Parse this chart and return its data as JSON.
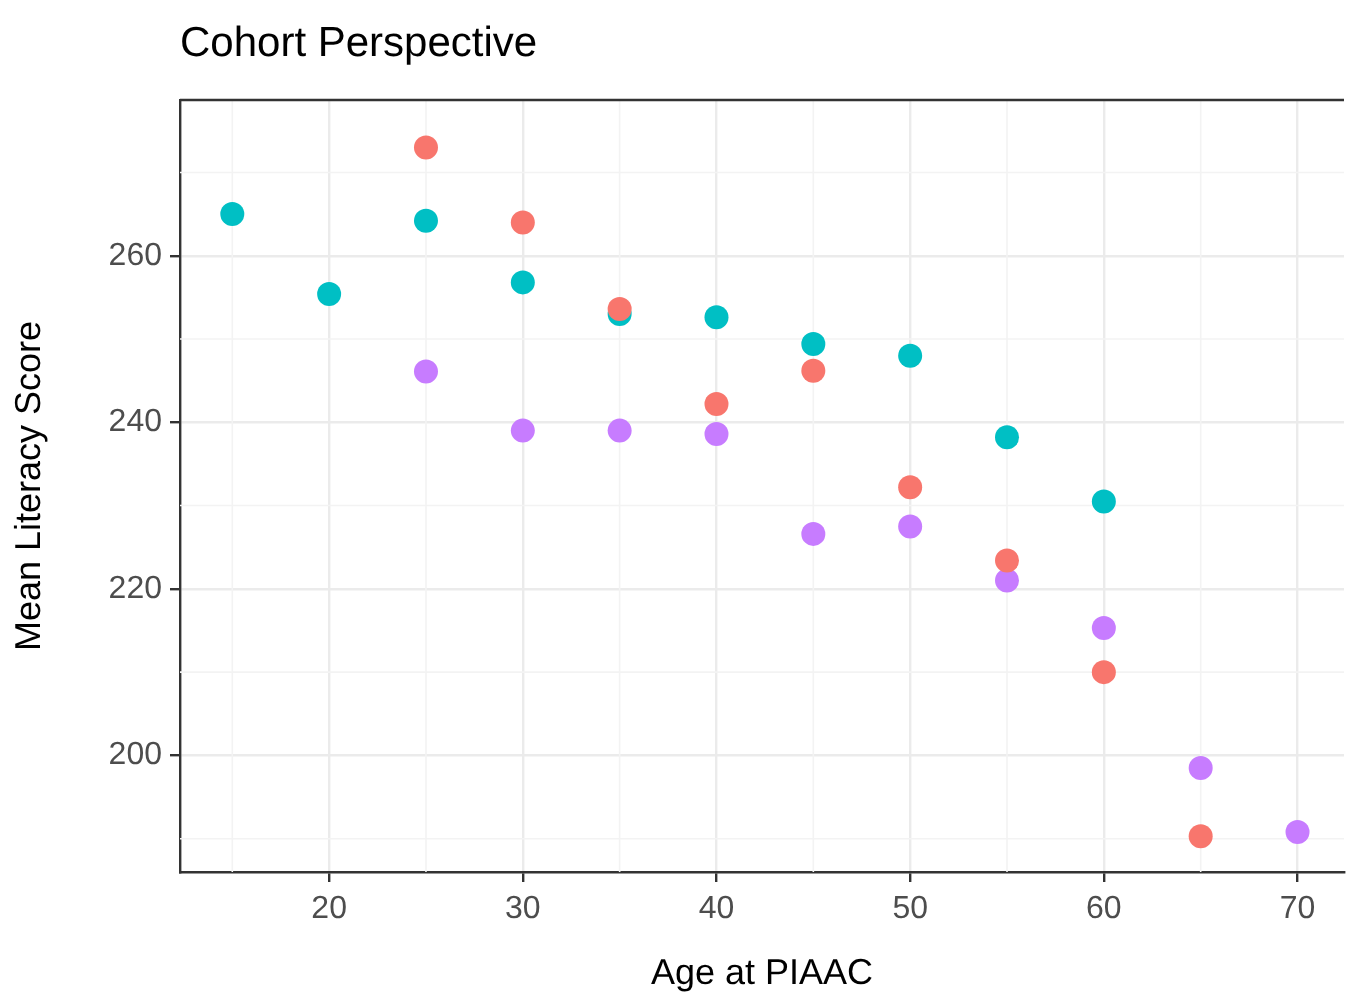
{
  "chart_data": {
    "type": "scatter",
    "title": "Cohort Perspective",
    "xlabel": "Age at PIAAC",
    "ylabel": "Mean Literacy Score",
    "xlim": [
      12.3,
      72.4
    ],
    "ylim": [
      186,
      278.7
    ],
    "xticks": [
      20,
      30,
      40,
      50,
      60,
      70
    ],
    "yticks": [
      200,
      220,
      240,
      260
    ],
    "grid": true,
    "legend": false,
    "marker": "circle",
    "series": [
      {
        "color": "#f8766d",
        "x": [
          25,
          30,
          35,
          40,
          45,
          50,
          55,
          60,
          65
        ],
        "values": [
          273,
          264,
          253.6,
          242.2,
          246.2,
          232.2,
          223.4,
          210,
          190.3
        ]
      },
      {
        "color": "#00bfc4",
        "x": [
          15,
          20,
          25,
          30,
          35,
          40,
          45,
          50,
          55,
          60
        ],
        "values": [
          265,
          255.4,
          264.2,
          256.8,
          253,
          252.6,
          249.4,
          248,
          238.2,
          230.5
        ]
      },
      {
        "color": "#c77cff",
        "x": [
          25,
          30,
          35,
          40,
          45,
          50,
          55,
          60,
          65,
          70
        ],
        "values": [
          246.1,
          239,
          239,
          238.6,
          226.6,
          227.5,
          221,
          215.3,
          198.5,
          190.8
        ]
      }
    ]
  }
}
